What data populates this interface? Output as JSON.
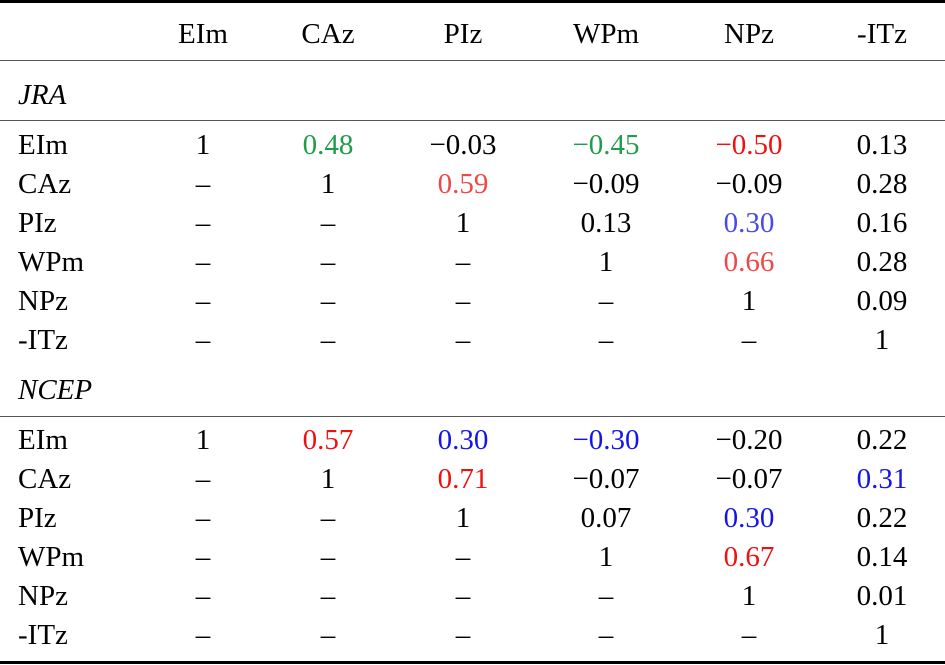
{
  "colors": {
    "green": "#1f9e4a",
    "red": "#ee1111",
    "lightred": "#f04848",
    "blue": "#1515e6",
    "lightblue": "#4a4ae8"
  },
  "columns": [
    "EIm",
    "CAz",
    "PIz",
    "WPm",
    "NPz",
    "-ITz"
  ],
  "sections": [
    {
      "name": "JRA",
      "rows": [
        {
          "label": "EIm",
          "cells": [
            {
              "v": "1"
            },
            {
              "v": "0.48",
              "c": "green"
            },
            {
              "v": "−0.03"
            },
            {
              "v": "−0.45",
              "c": "green"
            },
            {
              "v": "−0.50",
              "c": "red"
            },
            {
              "v": "0.13"
            }
          ]
        },
        {
          "label": "CAz",
          "cells": [
            {
              "v": "–"
            },
            {
              "v": "1"
            },
            {
              "v": "0.59",
              "c": "lightred"
            },
            {
              "v": "−0.09"
            },
            {
              "v": "−0.09"
            },
            {
              "v": "0.28"
            }
          ]
        },
        {
          "label": "PIz",
          "cells": [
            {
              "v": "–"
            },
            {
              "v": "–"
            },
            {
              "v": "1"
            },
            {
              "v": "0.13"
            },
            {
              "v": "0.30",
              "c": "lightblue"
            },
            {
              "v": "0.16"
            }
          ]
        },
        {
          "label": "WPm",
          "cells": [
            {
              "v": "–"
            },
            {
              "v": "–"
            },
            {
              "v": "–"
            },
            {
              "v": "1"
            },
            {
              "v": "0.66",
              "c": "lightred"
            },
            {
              "v": "0.28"
            }
          ]
        },
        {
          "label": "NPz",
          "cells": [
            {
              "v": "–"
            },
            {
              "v": "–"
            },
            {
              "v": "–"
            },
            {
              "v": "–"
            },
            {
              "v": "1"
            },
            {
              "v": "0.09"
            }
          ]
        },
        {
          "label": "-ITz",
          "cells": [
            {
              "v": "–"
            },
            {
              "v": "–"
            },
            {
              "v": "–"
            },
            {
              "v": "–"
            },
            {
              "v": "–"
            },
            {
              "v": "1"
            }
          ]
        }
      ]
    },
    {
      "name": "NCEP",
      "rows": [
        {
          "label": "EIm",
          "cells": [
            {
              "v": "1"
            },
            {
              "v": "0.57",
              "c": "red"
            },
            {
              "v": "0.30",
              "c": "blue"
            },
            {
              "v": "−0.30",
              "c": "blue"
            },
            {
              "v": "−0.20"
            },
            {
              "v": "0.22"
            }
          ]
        },
        {
          "label": "CAz",
          "cells": [
            {
              "v": "–"
            },
            {
              "v": "1"
            },
            {
              "v": "0.71",
              "c": "red"
            },
            {
              "v": "−0.07"
            },
            {
              "v": "−0.07"
            },
            {
              "v": "0.31",
              "c": "blue"
            }
          ]
        },
        {
          "label": "PIz",
          "cells": [
            {
              "v": "–"
            },
            {
              "v": "–"
            },
            {
              "v": "1"
            },
            {
              "v": "0.07"
            },
            {
              "v": "0.30",
              "c": "blue"
            },
            {
              "v": "0.22"
            }
          ]
        },
        {
          "label": "WPm",
          "cells": [
            {
              "v": "–"
            },
            {
              "v": "–"
            },
            {
              "v": "–"
            },
            {
              "v": "1"
            },
            {
              "v": "0.67",
              "c": "red"
            },
            {
              "v": "0.14"
            }
          ]
        },
        {
          "label": "NPz",
          "cells": [
            {
              "v": "–"
            },
            {
              "v": "–"
            },
            {
              "v": "–"
            },
            {
              "v": "–"
            },
            {
              "v": "1"
            },
            {
              "v": "0.01"
            }
          ]
        },
        {
          "label": "-ITz",
          "cells": [
            {
              "v": "–"
            },
            {
              "v": "–"
            },
            {
              "v": "–"
            },
            {
              "v": "–"
            },
            {
              "v": "–"
            },
            {
              "v": "1"
            }
          ]
        }
      ]
    }
  ]
}
